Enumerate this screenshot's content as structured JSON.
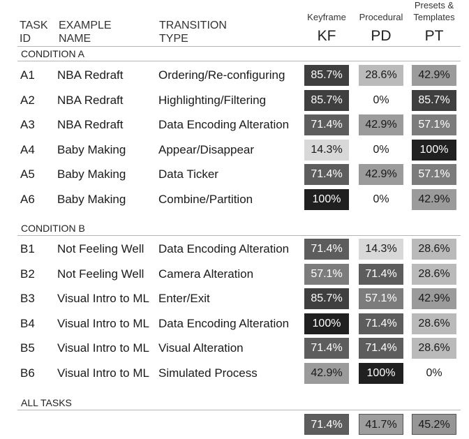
{
  "header": {
    "task_id": [
      "TASK",
      "ID"
    ],
    "example_name": [
      "EXAMPLE",
      "NAME"
    ],
    "transition_type": [
      "TRANSITION",
      "TYPE"
    ],
    "kf_full": "Keyframe",
    "pd_full": "Procedural",
    "pt_full": [
      "Presets &",
      "Templates"
    ],
    "kf": "KF",
    "pd": "PD",
    "pt": "PT"
  },
  "condition_a": {
    "label": "CONDITION A",
    "rows": [
      {
        "id": "A1",
        "example": "NBA Redraft",
        "type": "Ordering/Re-configuring",
        "kf": "85.7%",
        "pd": "28.6%",
        "pt": "42.9%",
        "kf_v": 85.7,
        "pd_v": 28.6,
        "pt_v": 42.9
      },
      {
        "id": "A2",
        "example": "NBA Redraft",
        "type": "Highlighting/Filtering",
        "kf": "85.7%",
        "pd": "0%",
        "pt": "85.7%",
        "kf_v": 85.7,
        "pd_v": 0,
        "pt_v": 85.7
      },
      {
        "id": "A3",
        "example": "NBA Redraft",
        "type": "Data Encoding Alteration",
        "kf": "71.4%",
        "pd": "42.9%",
        "pt": "57.1%",
        "kf_v": 71.4,
        "pd_v": 42.9,
        "pt_v": 57.1
      },
      {
        "id": "A4",
        "example": "Baby Making",
        "type": "Appear/Disappear",
        "kf": "14.3%",
        "pd": "0%",
        "pt": "100%",
        "kf_v": 14.3,
        "pd_v": 0,
        "pt_v": 100
      },
      {
        "id": "A5",
        "example": "Baby Making",
        "type": "Data Ticker",
        "kf": "71.4%",
        "pd": "42.9%",
        "pt": "57.1%",
        "kf_v": 71.4,
        "pd_v": 42.9,
        "pt_v": 57.1
      },
      {
        "id": "A6",
        "example": "Baby Making",
        "type": "Combine/Partition",
        "kf": "100%",
        "pd": "0%",
        "pt": "42.9%",
        "kf_v": 100,
        "pd_v": 0,
        "pt_v": 42.9
      }
    ]
  },
  "condition_b": {
    "label": "CONDITION B",
    "rows": [
      {
        "id": "B1",
        "example": "Not Feeling Well",
        "type": "Data Encoding Alteration",
        "kf": "71.4%",
        "pd": "14.3%",
        "pt": "28.6%",
        "kf_v": 71.4,
        "pd_v": 14.3,
        "pt_v": 28.6
      },
      {
        "id": "B2",
        "example": "Not Feeling Well",
        "type": "Camera Alteration",
        "kf": "57.1%",
        "pd": "71.4%",
        "pt": "28.6%",
        "kf_v": 57.1,
        "pd_v": 71.4,
        "pt_v": 28.6
      },
      {
        "id": "B3",
        "example": "Visual Intro to ML",
        "type": "Enter/Exit",
        "kf": "85.7%",
        "pd": "57.1%",
        "pt": "42.9%",
        "kf_v": 85.7,
        "pd_v": 57.1,
        "pt_v": 42.9
      },
      {
        "id": "B4",
        "example": "Visual Intro to ML",
        "type": "Data Encoding Alteration",
        "kf": "100%",
        "pd": "71.4%",
        "pt": "28.6%",
        "kf_v": 100,
        "pd_v": 71.4,
        "pt_v": 28.6
      },
      {
        "id": "B5",
        "example": "Visual Intro to ML",
        "type": "Visual Alteration",
        "kf": "71.4%",
        "pd": "71.4%",
        "pt": "28.6%",
        "kf_v": 71.4,
        "pd_v": 71.4,
        "pt_v": 28.6
      },
      {
        "id": "B6",
        "example": "Visual Intro to ML",
        "type": "Simulated Process",
        "kf": "42.9%",
        "pd": "100%",
        "pt": "0%",
        "kf_v": 42.9,
        "pd_v": 100,
        "pt_v": 0
      }
    ]
  },
  "all_tasks": {
    "label": "ALL TASKS",
    "kf": "71.4%",
    "pd": "41.7%",
    "pt": "45.2%",
    "kf_v": 71.4,
    "pd_v": 41.7,
    "pt_v": 45.2
  }
}
